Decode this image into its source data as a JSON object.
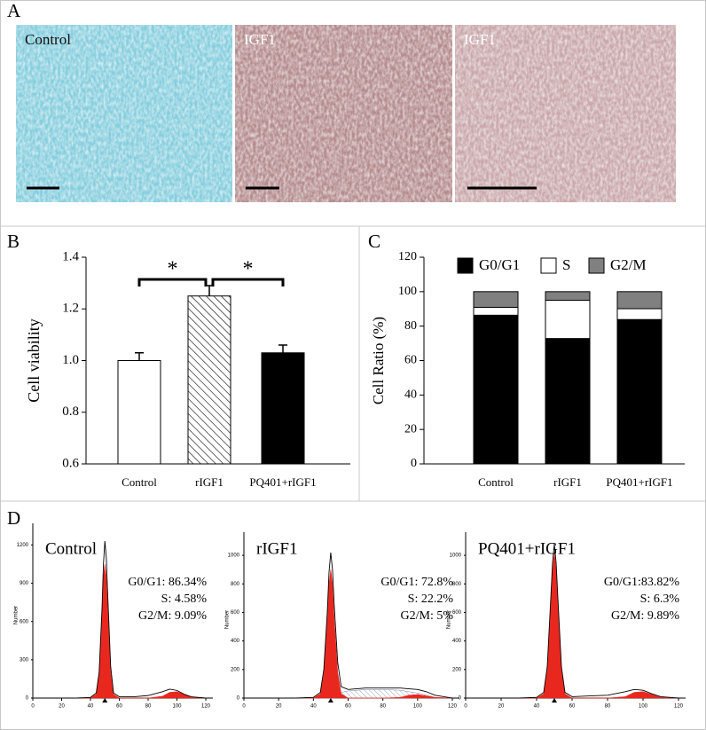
{
  "chart_data": [
    {
      "type": "image",
      "panel": "A",
      "images": [
        {
          "label": "Control",
          "color": "#86cede",
          "text_color": "#111111"
        },
        {
          "label": "IGF1",
          "color": "#b58c8e",
          "text_color": "#ffffff"
        },
        {
          "label": "IGF1",
          "color": "#c9a7aa",
          "text_color": "#ffffff"
        }
      ]
    },
    {
      "type": "bar",
      "panel": "B",
      "categories": [
        "Control",
        "rIGF1",
        "PQ401+rIGF1"
      ],
      "values": [
        1.0,
        1.25,
        1.03
      ],
      "errors": [
        0.03,
        0.04,
        0.03
      ],
      "colors": [
        "#ffffff",
        "#ffffff",
        "#000000"
      ],
      "hatch": [
        false,
        true,
        false
      ],
      "ylabel": "Cell viability",
      "ylim": [
        0.6,
        1.4
      ],
      "yticks": [
        0.6,
        0.8,
        {
          "value": 1,
          "label": "1.0"
        },
        1.2,
        1.4
      ],
      "annotations": [
        "*",
        "*"
      ]
    },
    {
      "type": "stacked_bar",
      "panel": "C",
      "categories": [
        "Control",
        "rIGF1",
        "PQ401+rIGF1"
      ],
      "series": [
        {
          "name": "G0/G1",
          "color": "#000000",
          "values": [
            86.34,
            72.8,
            83.82
          ]
        },
        {
          "name": "S",
          "color": "#ffffff",
          "values": [
            4.58,
            22.2,
            6.3
          ]
        },
        {
          "name": "G2/M",
          "color": "#808080",
          "values": [
            9.09,
            5,
            9.89
          ]
        }
      ],
      "ylabel": "Cell Ratio (%)",
      "ylim": [
        0,
        120
      ],
      "yticks": [
        0,
        20,
        40,
        60,
        80,
        100,
        120
      ]
    },
    {
      "type": "flow",
      "panel": "D",
      "title": "Control",
      "annotations": [
        "G0/G1: 86.34%",
        "S: 4.58%",
        "G2/M: 9.09%"
      ],
      "x": [
        30,
        40,
        44,
        46,
        48,
        49,
        50,
        51,
        52,
        54,
        56,
        60,
        70,
        80,
        90,
        95,
        100,
        105,
        110,
        120
      ],
      "series": [
        {
          "color": "#e8281e",
          "values": [
            0,
            0,
            30,
            180,
            650,
            950,
            1050,
            950,
            700,
            200,
            30,
            0,
            0,
            0,
            15,
            45,
            50,
            30,
            5,
            0
          ]
        },
        {
          "color": "#000000",
          "values": [
            0,
            5,
            40,
            200,
            700,
            1050,
            1230,
            1100,
            800,
            250,
            40,
            10,
            10,
            20,
            50,
            70,
            60,
            30,
            10,
            0
          ]
        }
      ],
      "ylabel": "Number",
      "xlim": [
        0,
        120
      ],
      "xticks": [
        0,
        20,
        40,
        60,
        80,
        100,
        120
      ],
      "ylim": [
        0,
        1300
      ],
      "yticks": [
        0,
        300,
        600,
        900,
        1200
      ]
    },
    {
      "type": "flow",
      "title": "rIGF1",
      "annotations": [
        "G0/G1: 72.8%",
        "S: 22.2%",
        "G2/M: 5%"
      ],
      "x": [
        30,
        40,
        44,
        46,
        48,
        49,
        50,
        51,
        52,
        54,
        56,
        60,
        70,
        80,
        90,
        95,
        100,
        105,
        110,
        120
      ],
      "series": [
        {
          "color": "#c8d0dc",
          "hatch": true,
          "values": [
            0,
            0,
            0,
            0,
            0,
            0,
            0,
            0,
            0,
            20,
            40,
            50,
            60,
            60,
            55,
            45,
            35,
            20,
            5,
            0
          ]
        },
        {
          "color": "#e8281e",
          "values": [
            0,
            0,
            30,
            170,
            550,
            800,
            900,
            800,
            550,
            180,
            30,
            0,
            0,
            0,
            5,
            20,
            25,
            15,
            5,
            0
          ]
        },
        {
          "color": "#000000",
          "values": [
            0,
            5,
            40,
            200,
            600,
            880,
            1020,
            900,
            650,
            250,
            80,
            60,
            70,
            70,
            70,
            65,
            60,
            45,
            20,
            0
          ]
        }
      ],
      "ylabel": "Number",
      "xlim": [
        0,
        120
      ],
      "xticks": [
        0,
        20,
        40,
        60,
        80,
        100,
        120
      ],
      "ylim": [
        0,
        1100
      ],
      "yticks": [
        0,
        200,
        400,
        600,
        800,
        1000
      ]
    },
    {
      "type": "flow",
      "title": "PQ401+rIGF1",
      "annotations": [
        "G0/G1:83.82%",
        "S: 6.3%",
        "G2/M: 9.89%"
      ],
      "x": [
        30,
        40,
        44,
        46,
        48,
        49,
        50,
        51,
        52,
        54,
        56,
        60,
        70,
        80,
        90,
        95,
        100,
        105,
        110,
        120
      ],
      "series": [
        {
          "color": "#e8281e",
          "values": [
            0,
            0,
            30,
            190,
            640,
            900,
            1020,
            900,
            640,
            190,
            30,
            0,
            0,
            0,
            10,
            40,
            45,
            25,
            5,
            0
          ]
        },
        {
          "color": "#000000",
          "values": [
            0,
            5,
            40,
            220,
            700,
            950,
            1080,
            950,
            700,
            220,
            40,
            10,
            15,
            20,
            45,
            60,
            55,
            30,
            10,
            0
          ]
        }
      ],
      "ylabel": "Number",
      "xlim": [
        0,
        120
      ],
      "xticks": [
        0,
        20,
        40,
        60,
        80,
        100,
        120
      ],
      "ylim": [
        0,
        1100
      ],
      "yticks": [
        0,
        200,
        400,
        600,
        800,
        1000
      ]
    }
  ]
}
